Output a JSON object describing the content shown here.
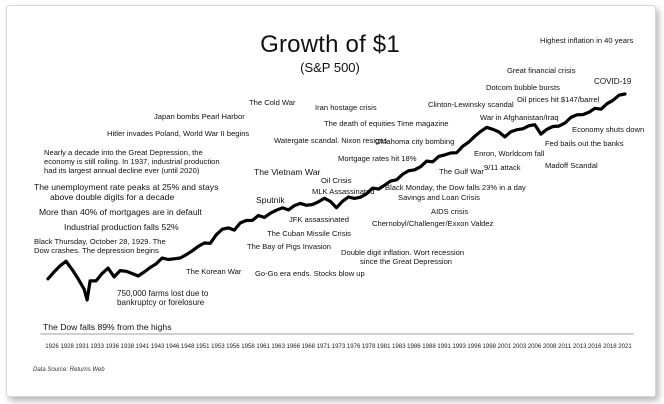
{
  "header": {
    "title": "Growth of $1",
    "subtitle": "(S&P 500)"
  },
  "footer": {
    "source": "Data Source: Returns Web"
  },
  "chart_data": {
    "type": "line",
    "title": "Growth of $1",
    "subtitle": "(S&P 500)",
    "xlabel": "",
    "ylabel": "",
    "log_scale_y": true,
    "grid": false,
    "legend": "none",
    "line_color": "#000000",
    "x_ticks": [
      "1926",
      "1928",
      "1931",
      "1933",
      "1936",
      "1938",
      "1941",
      "1943",
      "1946",
      "1948",
      "1951",
      "1953",
      "1956",
      "1958",
      "1961",
      "1963",
      "1966",
      "1968",
      "1971",
      "1973",
      "1976",
      "1978",
      "1981",
      "1983",
      "1986",
      "1988",
      "1991",
      "1993",
      "1996",
      "1998",
      "2001",
      "2003",
      "2006",
      "2008",
      "2011",
      "2013",
      "2016",
      "2018",
      "2021"
    ],
    "x_range": [
      1926,
      2022
    ],
    "series": [
      {
        "x": [
          1926,
          1927,
          1928,
          1929,
          1929.7,
          1930,
          1931,
          1932,
          1932.5,
          1933,
          1934,
          1935,
          1936,
          1937,
          1938,
          1939,
          1940,
          1941,
          1942,
          1943,
          1944,
          1945,
          1946,
          1947,
          1948,
          1949,
          1950,
          1951,
          1952,
          1953,
          1954,
          1955,
          1956,
          1957,
          1958,
          1959,
          1960,
          1961,
          1962,
          1963,
          1964,
          1965,
          1966,
          1967,
          1968,
          1969,
          1970,
          1971,
          1972,
          1973,
          1974,
          1975,
          1976,
          1977,
          1978,
          1979,
          1980,
          1981,
          1982,
          1983,
          1984,
          1985,
          1986,
          1987,
          1988,
          1989,
          1990,
          1991,
          1992,
          1993,
          1994,
          1995,
          1996,
          1997,
          1998,
          1999,
          2000,
          2001,
          2002,
          2003,
          2004,
          2005,
          2006,
          2007,
          2008,
          2009,
          2010,
          2011,
          2012,
          2013,
          2014,
          2015,
          2016,
          2017,
          2018,
          2019,
          2020,
          2021,
          2022
        ],
        "y": [
          1.0,
          1.4,
          1.9,
          2.4,
          1.8,
          1.6,
          1.0,
          0.6,
          0.35,
          0.9,
          0.9,
          1.3,
          1.7,
          1.1,
          1.5,
          1.45,
          1.3,
          1.15,
          1.4,
          1.75,
          2.1,
          2.8,
          2.6,
          2.7,
          2.8,
          3.3,
          4.0,
          5.0,
          5.9,
          5.8,
          8.9,
          11.7,
          12.5,
          11.2,
          16.0,
          18.0,
          18.1,
          23.0,
          21.0,
          25.8,
          30.0,
          33.8,
          30.4,
          37.7,
          41.9,
          38.3,
          39.8,
          45.5,
          54.1,
          46.2,
          34.0,
          46.6,
          57.8,
          53.7,
          57.2,
          67.8,
          89.8,
          85.4,
          103.7,
          127.0,
          135.0,
          178.0,
          211.0,
          222.0,
          259.0,
          341.0,
          330.0,
          431.0,
          464.0,
          510.0,
          517.0,
          711.0,
          874.0,
          1166.0,
          1499.0,
          1815.0,
          1650.0,
          1454.0,
          1133.0,
          1458.0,
          1617.0,
          1696.0,
          1964.0,
          2072.0,
          1305.0,
          1650.0,
          1899.0,
          1939.0,
          2249.0,
          2977.0,
          3385.0,
          3431.0,
          3842.0,
          4681.0,
          4475.0,
          5886.0,
          6969.0,
          8970.0,
          9500.0
        ]
      }
    ],
    "annotations": [
      "Highest inflation in 40 years",
      "Great financial crisis",
      "COVID-19",
      "Dotcom bubble bursts",
      "Oil prices hit $147/barrel",
      "The Cold War",
      "Iran hostage crisis",
      "Clinton-Lewinsky scandal",
      "Japan bombs Pearl Harbor",
      "War in Afghanistan/Iraq",
      "Economy shuts down",
      "The death of equities Time magazine",
      "Hitler invades Poland, World War II begins",
      "Watergate scandal. Nixon resigns",
      "Oklahoma city bombing",
      "Fed bails out the banks",
      "Nearly a decade into the Great Depression, the",
      "economy is still roiling. In 1937, industrial production",
      "had its largest annual decline ever (until 2020)",
      "Enron, Worldcom fall",
      "Mortgage rates hit 18%",
      "Madoff Scandal",
      "The Vietnam War",
      "The Gulf War",
      "9/11 attack",
      "Oil Crisis",
      "The unemployment rate peaks at 25% and stays",
      "above double digits for a decade",
      "MLK Assassinated",
      "Black Monday, the Dow falls 23% in a day",
      "Sputnik",
      "Savings and Loan Crisis",
      "More than 40% of mortgages are in default",
      "JFK assassinated",
      "AIDS crisis",
      "Industrial production falls 52%",
      "Chernobyl/Challenger/Exxon Valdez",
      "The Cuban Missile Crisis",
      "Black Thursday, October 28, 1929. The",
      "Dow crashes. The depression begins",
      "The Bay of Pigs Invasion",
      "Double digit inflation. Wort recession",
      "since the Great Depression",
      "The Korean War",
      "Go-Go era ends. Stocks blow up",
      "750,000 farms lost due to",
      "bankruptcy or forelosure",
      "The Dow falls 89% from the highs"
    ]
  }
}
